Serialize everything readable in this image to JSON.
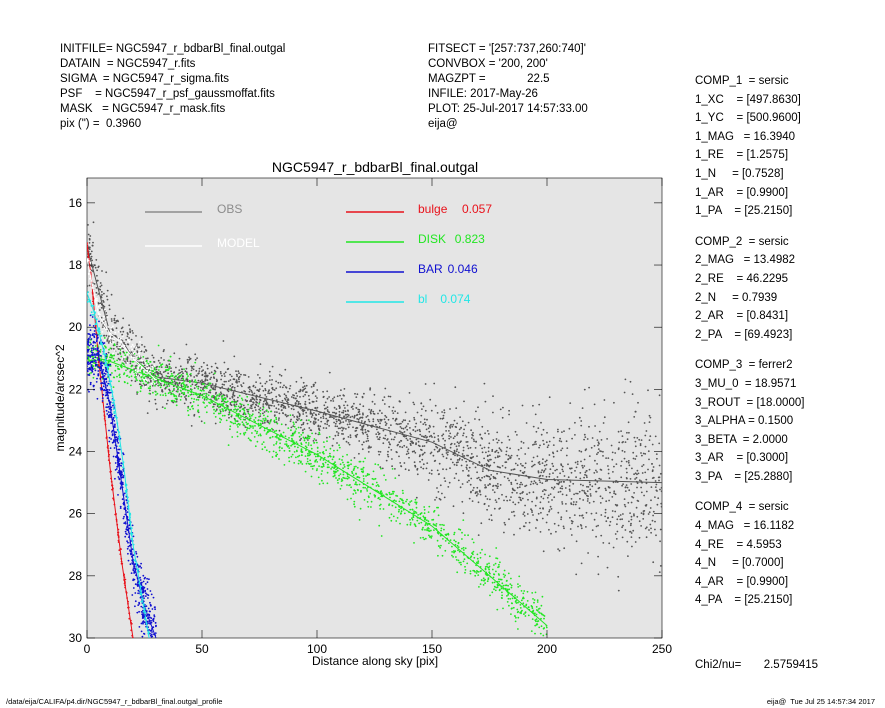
{
  "header_left": [
    "INITFILE= NGC5947_r_bdbarBl_final.outgal",
    "DATAIN  = NGC5947_r.fits",
    "SIGMA  = NGC5947_r_sigma.fits",
    "PSF    = NGC5947_r_psf_gaussmoffat.fits",
    "MASK   = NGC5947_r_mask.fits",
    "pix (\") =  0.3960"
  ],
  "header_mid": [
    "FITSECT = '[257:737,260:740]'",
    "CONVBOX = '200, 200'",
    "MAGZPT =             22.5",
    "INFILE: 2017-May-26",
    "PLOT: 25-Jul-2017 14:57:33.00",
    "eija@"
  ],
  "components": [
    {
      "lines": [
        "COMP_1  = sersic",
        "1_XC    = [497.8630]",
        "1_YC    = [500.9600]",
        "1_MAG   = 16.3940",
        "1_RE    = [1.2575]",
        "1_N     = [0.7528]",
        "1_AR    = [0.9900]",
        "1_PA    = [25.2150]"
      ]
    },
    {
      "lines": [
        "COMP_2  = sersic",
        "2_MAG   = 13.4982",
        "2_RE    = 46.2295",
        "2_N     = 0.7939",
        "2_AR    = [0.8431]",
        "2_PA    = [69.4923]"
      ]
    },
    {
      "lines": [
        "COMP_3  = ferrer2",
        "3_MU_0  = 18.9571",
        "3_ROUT  = [18.0000]",
        "3_ALPHA = 0.1500",
        "3_BETA  = 2.0000",
        "3_AR    = [0.3000]",
        "3_PA    = [25.2880]"
      ]
    },
    {
      "lines": [
        "COMP_4  = sersic",
        "4_MAG   = 16.1182",
        "4_RE    = 4.5953",
        "4_N     = [0.7000]",
        "4_AR    = [0.9900]",
        "4_PA    = [25.2150]"
      ]
    }
  ],
  "chi2": "Chi2/nu=       2.5759415",
  "footer_left": "/data/eija/CALIFA/p4.dir/NGC5947_r_bdbarBl_final.outgal_profile",
  "footer_right": "eija@  Tue Jul 25 14:57:34 2017",
  "chart_data": {
    "type": "scatter",
    "title": "NGC5947_r_bdbarBl_final.outgal",
    "xlabel": "Distance along sky [pix]",
    "ylabel": "magnitude/arcsec^2",
    "xlim": [
      0,
      250
    ],
    "ylim": [
      30,
      15.2
    ],
    "x_ticks": [
      0,
      50,
      100,
      150,
      200,
      250
    ],
    "y_ticks": [
      16,
      18,
      20,
      22,
      24,
      26,
      28,
      30
    ],
    "background": "#e5e5e5",
    "legend_left": [
      {
        "label": "OBS",
        "color": "#8c8c8c"
      },
      {
        "label": "MODEL",
        "color": "#ffffff"
      }
    ],
    "legend_right": [
      {
        "label": "bulge",
        "value": "0.057",
        "color": "#e8121b"
      },
      {
        "label": "DISK",
        "value": "0.823",
        "color": "#22e622"
      },
      {
        "label": "BAR",
        "value": "0.046",
        "color": "#1010d0"
      },
      {
        "label": "bl",
        "value": "0.074",
        "color": "#22e6e6"
      }
    ],
    "series": [
      {
        "name": "OBS",
        "color": "#555555",
        "ridge": [
          [
            0,
            17.4
          ],
          [
            5,
            18.8
          ],
          [
            10,
            20.2
          ],
          [
            15,
            20.4
          ],
          [
            20,
            21.0
          ],
          [
            30,
            21.6
          ],
          [
            50,
            21.8
          ],
          [
            100,
            22.7
          ],
          [
            150,
            23.7
          ],
          [
            175,
            24.6
          ],
          [
            200,
            24.9
          ],
          [
            250,
            25.0
          ]
        ]
      },
      {
        "name": "DISK",
        "color": "#22e622",
        "ridge": [
          [
            0,
            20.9
          ],
          [
            10,
            21.1
          ],
          [
            50,
            22.2
          ],
          [
            100,
            24.1
          ],
          [
            150,
            26.4
          ],
          [
            175,
            28.0
          ],
          [
            200,
            29.6
          ]
        ]
      },
      {
        "name": "bulge",
        "color": "#e8121b",
        "ridge": [
          [
            0,
            17.3
          ],
          [
            2,
            18.5
          ],
          [
            5,
            21.0
          ],
          [
            10,
            24.5
          ],
          [
            15,
            27.5
          ],
          [
            20,
            30.0
          ]
        ]
      },
      {
        "name": "BAR",
        "color": "#1010d0",
        "ridge": [
          [
            0,
            20.9
          ],
          [
            5,
            20.9
          ],
          [
            10,
            22.5
          ],
          [
            15,
            25.0
          ],
          [
            20,
            27.5
          ],
          [
            25,
            29.0
          ],
          [
            30,
            30.0
          ]
        ]
      },
      {
        "name": "bl",
        "color": "#22e6e6",
        "ridge": [
          [
            0,
            18.9
          ],
          [
            3,
            19.5
          ],
          [
            8,
            21.0
          ],
          [
            12,
            22.5
          ],
          [
            16,
            24.5
          ],
          [
            20,
            27.0
          ],
          [
            27,
            30.0
          ]
        ]
      },
      {
        "name": "MODEL",
        "color": "#ffffff",
        "ridge": [
          [
            0,
            17.8
          ],
          [
            5,
            19.6
          ],
          [
            10,
            20.2
          ],
          [
            15,
            20.5
          ],
          [
            20,
            21.0
          ],
          [
            30,
            21.7
          ]
        ]
      }
    ]
  }
}
